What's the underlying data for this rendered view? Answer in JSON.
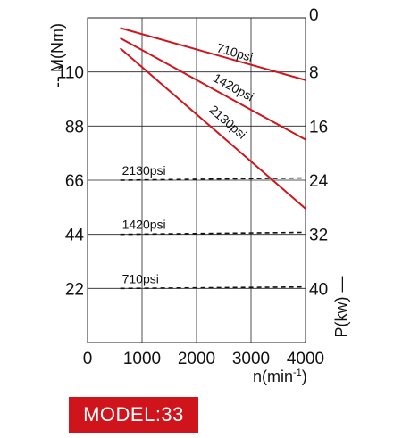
{
  "chart_data": {
    "type": "line",
    "x": {
      "label": "n(min",
      "label_sup": "-1",
      "label_close": ")",
      "lim": [
        0,
        4000
      ],
      "ticks": [
        0,
        1000,
        2000,
        3000,
        4000
      ]
    },
    "y_left": {
      "label": "-- M(Nm)",
      "lim": [
        0,
        132
      ],
      "ticks": [
        22,
        44,
        66,
        88,
        110
      ]
    },
    "y_right": {
      "label": "P(kw) —",
      "lim": [
        48,
        0
      ],
      "inverted": true,
      "ticks": [
        0,
        8,
        16,
        24,
        32,
        40
      ]
    },
    "grid": true,
    "series": [
      {
        "name": "710psi",
        "kind": "power",
        "axis": "right",
        "style": "solid",
        "color": "#d0141b",
        "points": [
          [
            600,
            1.5
          ],
          [
            4000,
            9.2
          ]
        ]
      },
      {
        "name": "1420psi",
        "kind": "power",
        "axis": "right",
        "style": "solid",
        "color": "#d0141b",
        "points": [
          [
            600,
            3.0
          ],
          [
            4000,
            18.0
          ]
        ]
      },
      {
        "name": "2130psi",
        "kind": "power",
        "axis": "right",
        "style": "solid",
        "color": "#d0141b",
        "points": [
          [
            600,
            4.5
          ],
          [
            4000,
            28.2
          ]
        ]
      },
      {
        "name": "2130psi",
        "kind": "torque",
        "axis": "left",
        "style": "dashed",
        "color": "#111111",
        "points": [
          [
            600,
            66.0
          ],
          [
            4000,
            66.9
          ]
        ]
      },
      {
        "name": "1420psi",
        "kind": "torque",
        "axis": "left",
        "style": "dashed",
        "color": "#111111",
        "points": [
          [
            600,
            44.0
          ],
          [
            4000,
            44.8
          ]
        ]
      },
      {
        "name": "710psi",
        "kind": "torque",
        "axis": "left",
        "style": "dashed",
        "color": "#111111",
        "points": [
          [
            600,
            22.0
          ],
          [
            4000,
            22.6
          ]
        ]
      }
    ]
  },
  "model_label": "MODEL:33",
  "colors": {
    "power_line": "#d0141b",
    "model_badge": "#d0141b",
    "grid": "#222222"
  }
}
